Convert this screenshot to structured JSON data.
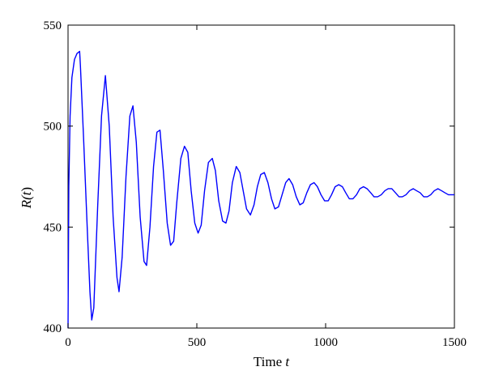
{
  "chart_data": {
    "type": "line",
    "xlabel": "Time",
    "xlabel_var": "t",
    "ylabel": "R(t)",
    "ylabel_prefix": "R(",
    "ylabel_var": "t",
    "ylabel_suffix": ")",
    "xlim": [
      0,
      1500
    ],
    "ylim": [
      400,
      550
    ],
    "xticks": [
      0,
      500,
      1000,
      1500
    ],
    "yticks": [
      400,
      450,
      500,
      550
    ],
    "grid": false,
    "series": [
      {
        "color": "#0000ff",
        "x": [
          0,
          3,
          8,
          15,
          25,
          35,
          45,
          48,
          60,
          75,
          85,
          92,
          100,
          115,
          130,
          145,
          160,
          175,
          190,
          198,
          210,
          225,
          240,
          252,
          265,
          280,
          295,
          305,
          318,
          332,
          345,
          357,
          370,
          385,
          398,
          410,
          422,
          438,
          452,
          465,
          478,
          492,
          505,
          517,
          530,
          545,
          560,
          572,
          585,
          600,
          613,
          625,
          638,
          653,
          667,
          680,
          693,
          708,
          722,
          735,
          748,
          762,
          776,
          790,
          803,
          817,
          831,
          845,
          858,
          872,
          886,
          900,
          913,
          927,
          941,
          955,
          968,
          982,
          996,
          1010,
          1023,
          1037,
          1051,
          1065,
          1078,
          1092,
          1106,
          1120,
          1133,
          1147,
          1161,
          1175,
          1188,
          1202,
          1216,
          1230,
          1243,
          1257,
          1271,
          1285,
          1298,
          1312,
          1326,
          1340,
          1353,
          1367,
          1381,
          1395,
          1408,
          1422,
          1436,
          1450,
          1463,
          1477,
          1491,
          1500
        ],
        "y": [
          400,
          470,
          505,
          524,
          533,
          536,
          537,
          530,
          495,
          448,
          418,
          404,
          410,
          460,
          505,
          525,
          500,
          455,
          425,
          418,
          435,
          475,
          505,
          510,
          492,
          455,
          433,
          431,
          450,
          480,
          497,
          498,
          478,
          452,
          441,
          443,
          462,
          484,
          490,
          487,
          468,
          452,
          447,
          451,
          468,
          482,
          484,
          478,
          463,
          453,
          452,
          458,
          472,
          480,
          477,
          468,
          459,
          456,
          461,
          470,
          476,
          477,
          472,
          464,
          459,
          460,
          466,
          472,
          474,
          471,
          465,
          461,
          462,
          467,
          471,
          472,
          470,
          466,
          463,
          463,
          466,
          470,
          471,
          470,
          467,
          464,
          464,
          466,
          469,
          470,
          469,
          467,
          465,
          465,
          466,
          468,
          469,
          469,
          467,
          465,
          465,
          466,
          468,
          469,
          468,
          467,
          465,
          465,
          466,
          468,
          469,
          468,
          467,
          466,
          466,
          466
        ]
      }
    ]
  }
}
